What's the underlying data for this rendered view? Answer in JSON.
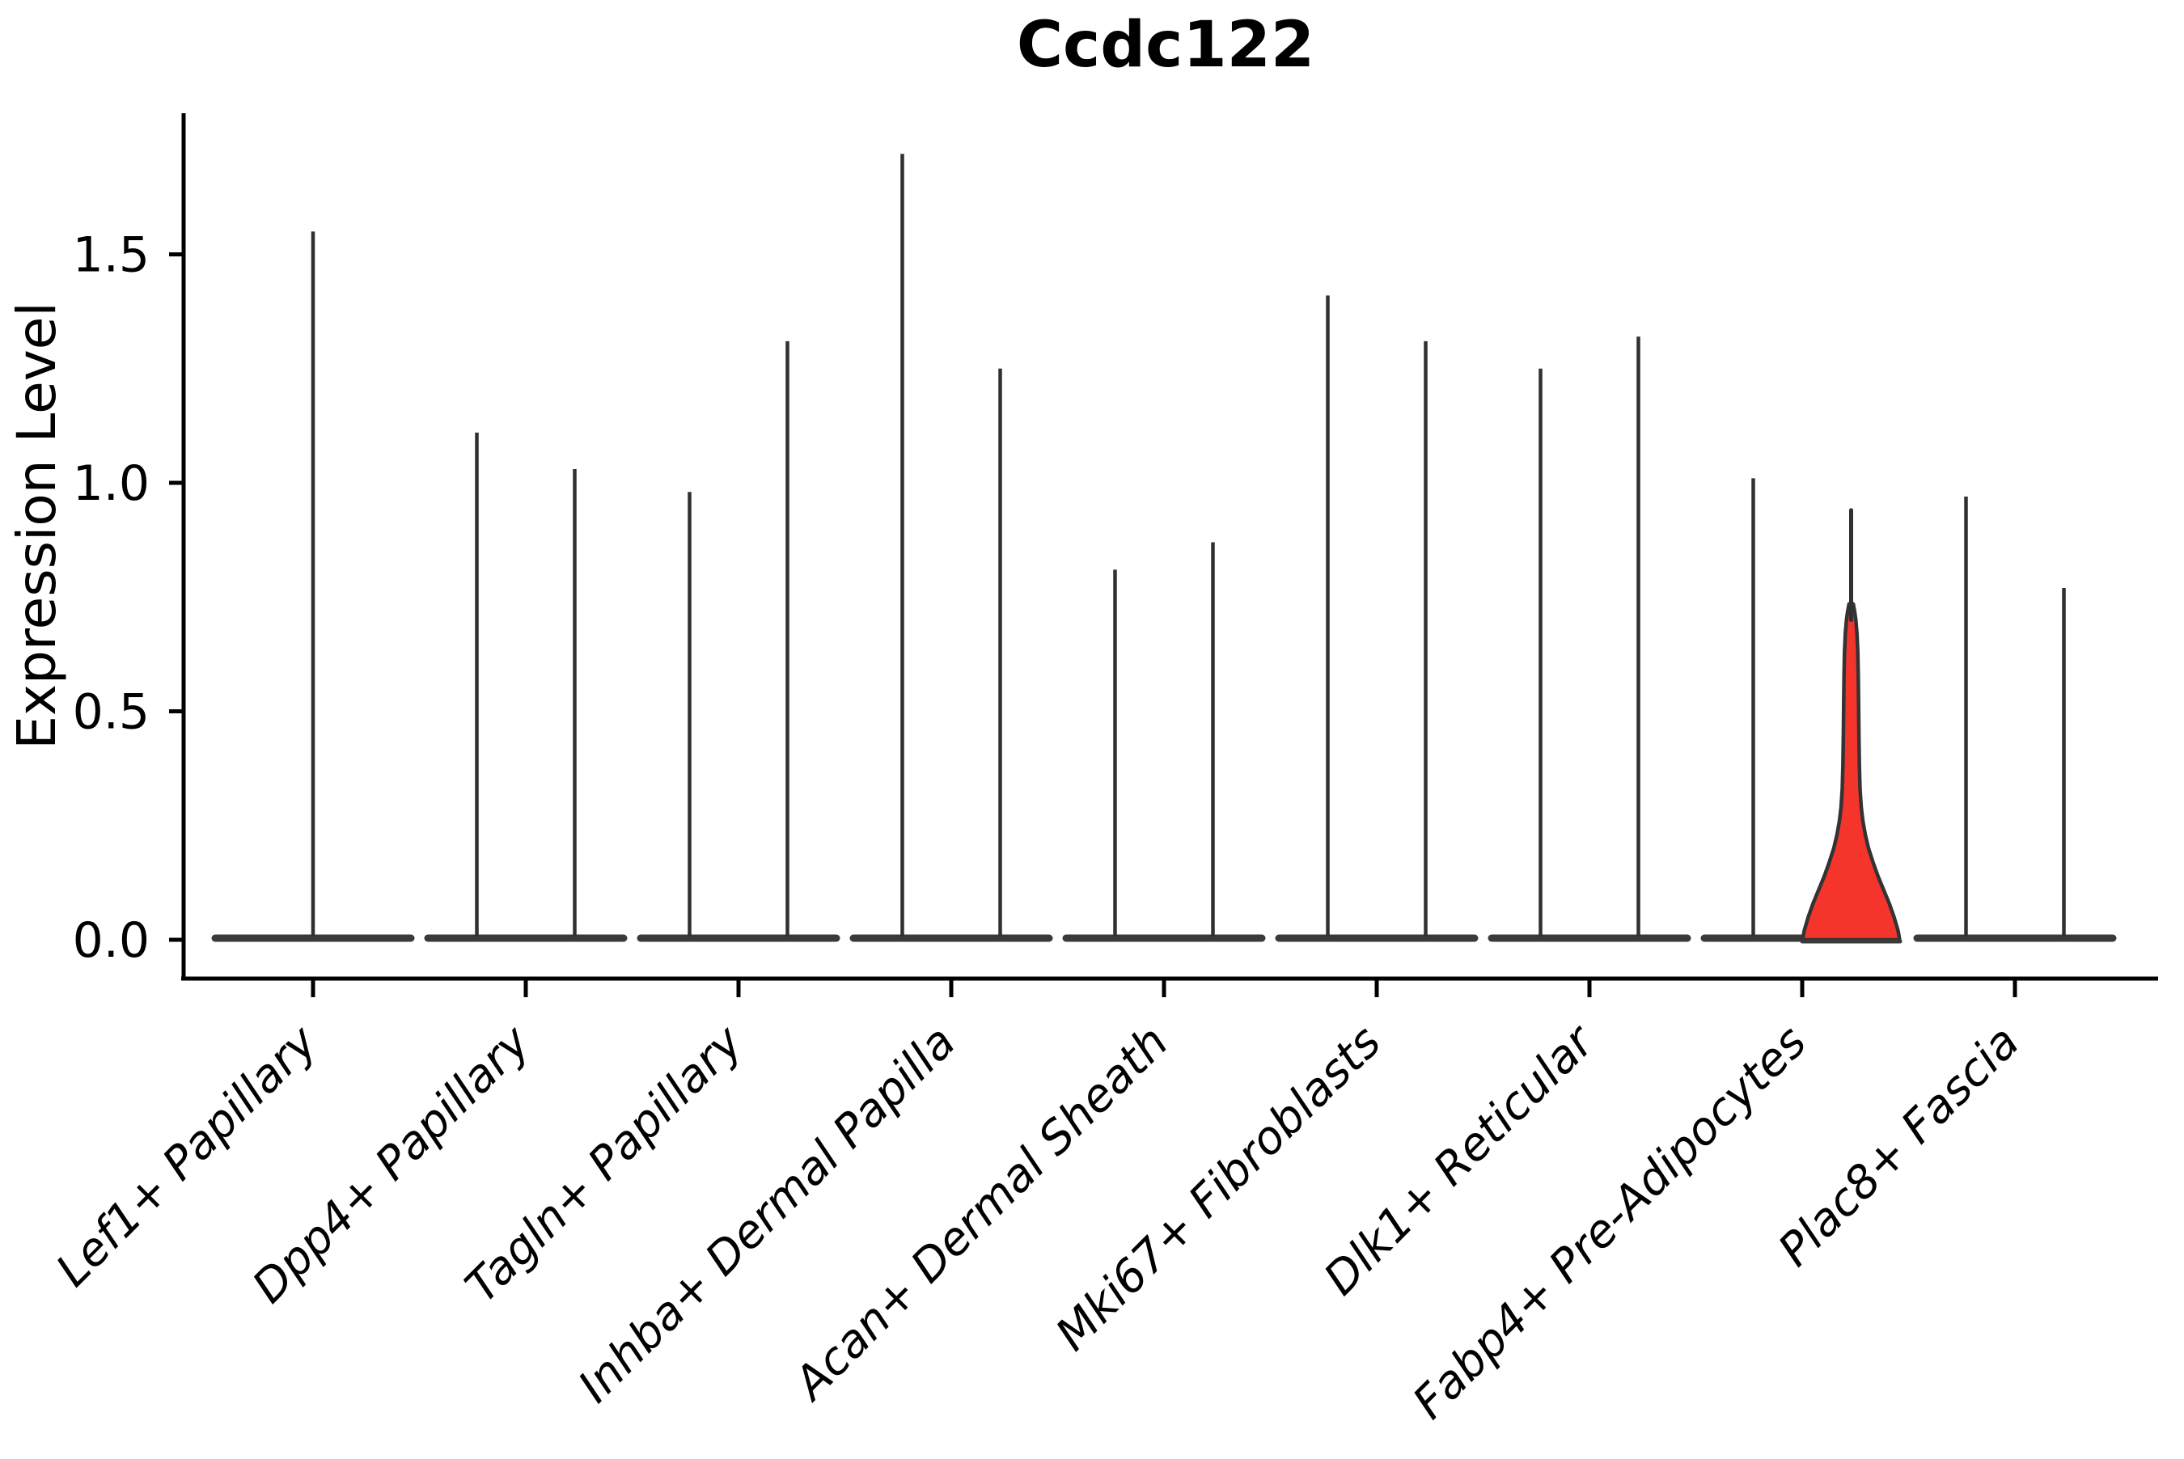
{
  "title": "Ccdc122",
  "y_axis": {
    "label": "Expression Level",
    "tick_labels": [
      "0.0",
      "0.5",
      "1.0",
      "1.5"
    ],
    "tick_values": [
      0.0,
      0.5,
      1.0,
      1.5
    ]
  },
  "x_axis": {
    "categories": [
      "Lef1+ Papillary",
      "Dpp4+ Papillary",
      "Tagln+ Papillary",
      "Inhba+ Dermal Papilla",
      "Acan+ Dermal Sheath",
      "Mki67+ Fibroblasts",
      "Dlk1+ Reticular",
      "Fabp4+ Pre-Adipocytes",
      "Plac8+ Fascia"
    ]
  },
  "colors": {
    "violin_stroke": "#303030",
    "base_bar": "#3a3a3a",
    "axis": "#000000",
    "highlight_fill": "#f5342c",
    "highlight_stroke": "#333333"
  },
  "chart_data": {
    "type": "violin",
    "title": "Ccdc122",
    "xlabel": "",
    "ylabel": "Expression Level",
    "ylim": [
      0,
      1.81
    ],
    "yticks": [
      0.0,
      0.5,
      1.0,
      1.5
    ],
    "grid": false,
    "legend": "none",
    "categories": [
      "Lef1+ Papillary",
      "Dpp4+ Papillary",
      "Tagln+ Papillary",
      "Inhba+ Dermal Papilla",
      "Acan+ Dermal Sheath",
      "Mki67+ Fibroblasts",
      "Dlk1+ Reticular",
      "Fabp4+ Pre-Adipocytes",
      "Plac8+ Fascia"
    ],
    "description": "Each violin is collapsed at expression 0 (flat base) with a thin density spike up to its maximum expression value; Fabp4+ Pre-Adipocytes right violin is highlighted red with visible density mass near 0-0.3.",
    "violins": [
      {
        "category_index": 0,
        "category": "Lef1+ Papillary",
        "slot": "full",
        "max": 1.55,
        "highlighted": false
      },
      {
        "category_index": 1,
        "category": "Dpp4+ Papillary",
        "slot": "left",
        "max": 1.11,
        "highlighted": false
      },
      {
        "category_index": 1,
        "category": "Dpp4+ Papillary",
        "slot": "right",
        "max": 1.03,
        "highlighted": false
      },
      {
        "category_index": 2,
        "category": "Tagln+ Papillary",
        "slot": "left",
        "max": 0.98,
        "highlighted": false
      },
      {
        "category_index": 2,
        "category": "Tagln+ Papillary",
        "slot": "right",
        "max": 1.31,
        "highlighted": false
      },
      {
        "category_index": 3,
        "category": "Inhba+ Dermal Papilla",
        "slot": "left",
        "max": 1.72,
        "highlighted": false
      },
      {
        "category_index": 3,
        "category": "Inhba+ Dermal Papilla",
        "slot": "right",
        "max": 1.25,
        "highlighted": false
      },
      {
        "category_index": 4,
        "category": "Acan+ Dermal Sheath",
        "slot": "left",
        "max": 0.81,
        "highlighted": false
      },
      {
        "category_index": 4,
        "category": "Acan+ Dermal Sheath",
        "slot": "right",
        "max": 0.87,
        "highlighted": false
      },
      {
        "category_index": 5,
        "category": "Mki67+ Fibroblasts",
        "slot": "left",
        "max": 1.41,
        "highlighted": false
      },
      {
        "category_index": 5,
        "category": "Mki67+ Fibroblasts",
        "slot": "right",
        "max": 1.31,
        "highlighted": false
      },
      {
        "category_index": 6,
        "category": "Dlk1+ Reticular",
        "slot": "left",
        "max": 1.25,
        "highlighted": false
      },
      {
        "category_index": 6,
        "category": "Dlk1+ Reticular",
        "slot": "right",
        "max": 1.32,
        "highlighted": false
      },
      {
        "category_index": 7,
        "category": "Fabp4+ Pre-Adipocytes",
        "slot": "left",
        "max": 1.01,
        "highlighted": false
      },
      {
        "category_index": 7,
        "category": "Fabp4+ Pre-Adipocytes",
        "slot": "right",
        "max": 0.94,
        "highlighted": true
      },
      {
        "category_index": 8,
        "category": "Plac8+ Fascia",
        "slot": "left",
        "max": 0.97,
        "highlighted": false
      },
      {
        "category_index": 8,
        "category": "Plac8+ Fascia",
        "slot": "right",
        "max": 0.77,
        "highlighted": false
      }
    ],
    "highlight_profile_value_halfwidth": [
      [
        0.0,
        60.0
      ],
      [
        0.02,
        58.0
      ],
      [
        0.05,
        53.0
      ],
      [
        0.08,
        47.0
      ],
      [
        0.11,
        40.0
      ],
      [
        0.14,
        33.0
      ],
      [
        0.17,
        27.0
      ],
      [
        0.2,
        21.5
      ],
      [
        0.23,
        17.5
      ],
      [
        0.26,
        14.5
      ],
      [
        0.29,
        12.5
      ],
      [
        0.33,
        11.0
      ],
      [
        0.38,
        10.2
      ],
      [
        0.45,
        9.6
      ],
      [
        0.52,
        9.2
      ],
      [
        0.58,
        8.8
      ],
      [
        0.63,
        8.2
      ],
      [
        0.67,
        7.2
      ],
      [
        0.7,
        5.8
      ],
      [
        0.72,
        4.2
      ],
      [
        0.735,
        2.6
      ]
    ]
  }
}
